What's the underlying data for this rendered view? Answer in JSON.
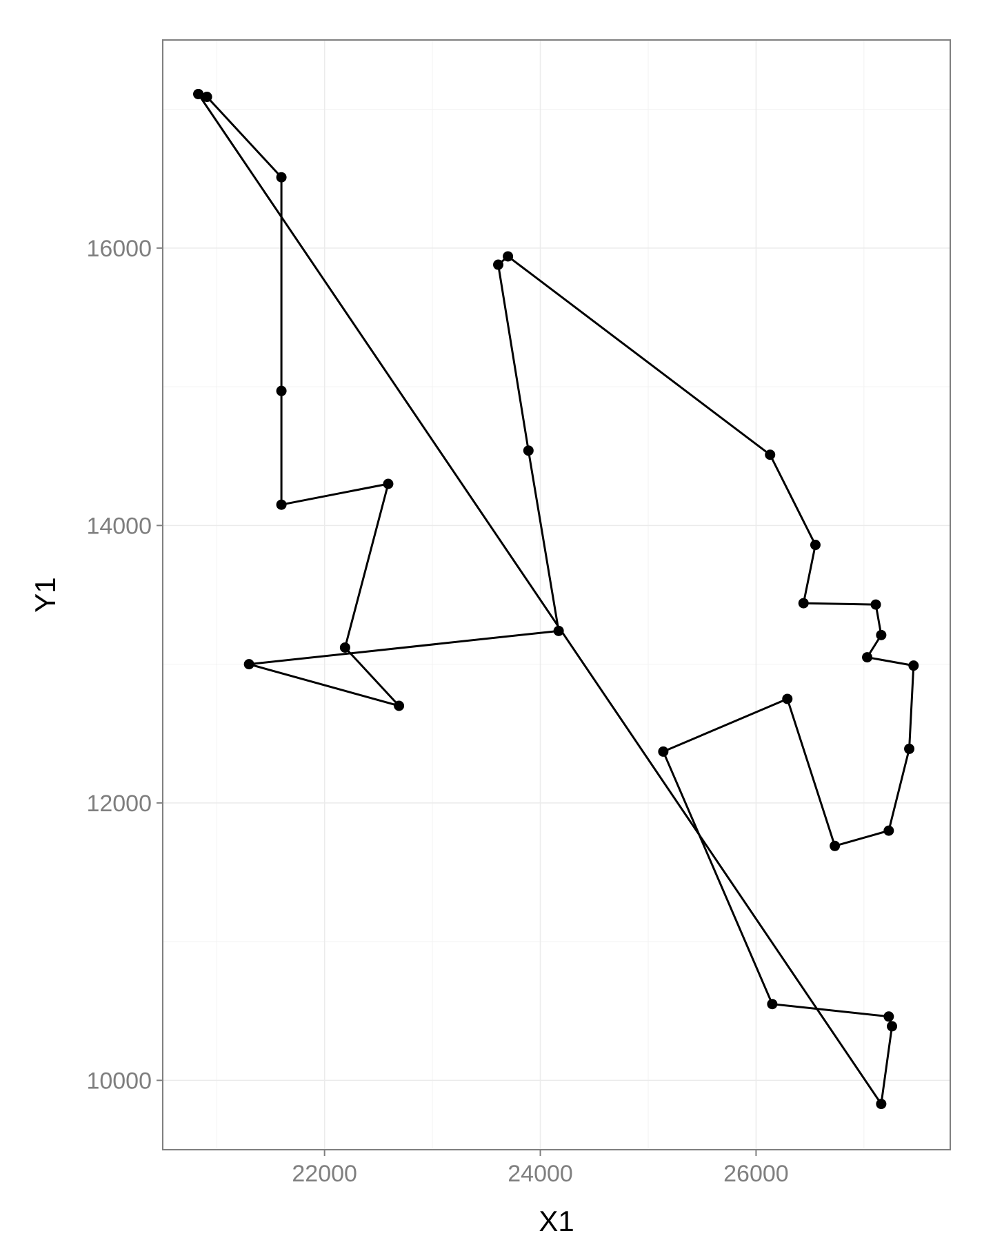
{
  "chart_data": {
    "type": "line",
    "title": "",
    "xlabel": "X1",
    "ylabel": "Y1",
    "xlim": [
      20500,
      27800
    ],
    "ylim": [
      9500,
      17500
    ],
    "x_ticks": [
      22000,
      24000,
      26000
    ],
    "x_tick_labels": [
      "22000",
      "24000",
      "26000"
    ],
    "y_ticks": [
      10000,
      12000,
      14000,
      16000
    ],
    "y_tick_labels": [
      "10000",
      "12000",
      "14000",
      "16000"
    ],
    "x_minor_gridlines": [
      21000,
      23000,
      25000,
      27000
    ],
    "y_minor_gridlines": [
      11000,
      13000,
      15000,
      17000
    ],
    "grid": true,
    "legend": "none",
    "colors": {
      "line": "#000000",
      "point": "#000000",
      "grid": "#ebebeb",
      "panel_border": "#7f7f7f",
      "tick_label": "#7f7f7f"
    },
    "series": [
      {
        "points": [
          {
            "x": 20830,
            "y": 17110
          },
          {
            "x": 20910,
            "y": 17090
          },
          {
            "x": 21600,
            "y": 16510
          },
          {
            "x": 21600,
            "y": 14970
          },
          {
            "x": 21600,
            "y": 14150
          },
          {
            "x": 22590,
            "y": 14300
          },
          {
            "x": 22190,
            "y": 13120
          },
          {
            "x": 22690,
            "y": 12700
          },
          {
            "x": 21300,
            "y": 13000
          },
          {
            "x": 24170,
            "y": 13240
          },
          {
            "x": 23890,
            "y": 14540
          },
          {
            "x": 23610,
            "y": 15880
          },
          {
            "x": 23700,
            "y": 15940
          },
          {
            "x": 26130,
            "y": 14510
          },
          {
            "x": 26550,
            "y": 13860
          },
          {
            "x": 26440,
            "y": 13440
          },
          {
            "x": 27110,
            "y": 13430
          },
          {
            "x": 27160,
            "y": 13210
          },
          {
            "x": 27030,
            "y": 13050
          },
          {
            "x": 27460,
            "y": 12990
          },
          {
            "x": 27420,
            "y": 12390
          },
          {
            "x": 27230,
            "y": 11800
          },
          {
            "x": 26730,
            "y": 11690
          },
          {
            "x": 26290,
            "y": 12750
          },
          {
            "x": 25140,
            "y": 12370
          },
          {
            "x": 26150,
            "y": 10550
          },
          {
            "x": 27230,
            "y": 10460
          },
          {
            "x": 27260,
            "y": 10390
          },
          {
            "x": 27160,
            "y": 9830
          },
          {
            "x": 20830,
            "y": 17110
          }
        ]
      }
    ]
  }
}
